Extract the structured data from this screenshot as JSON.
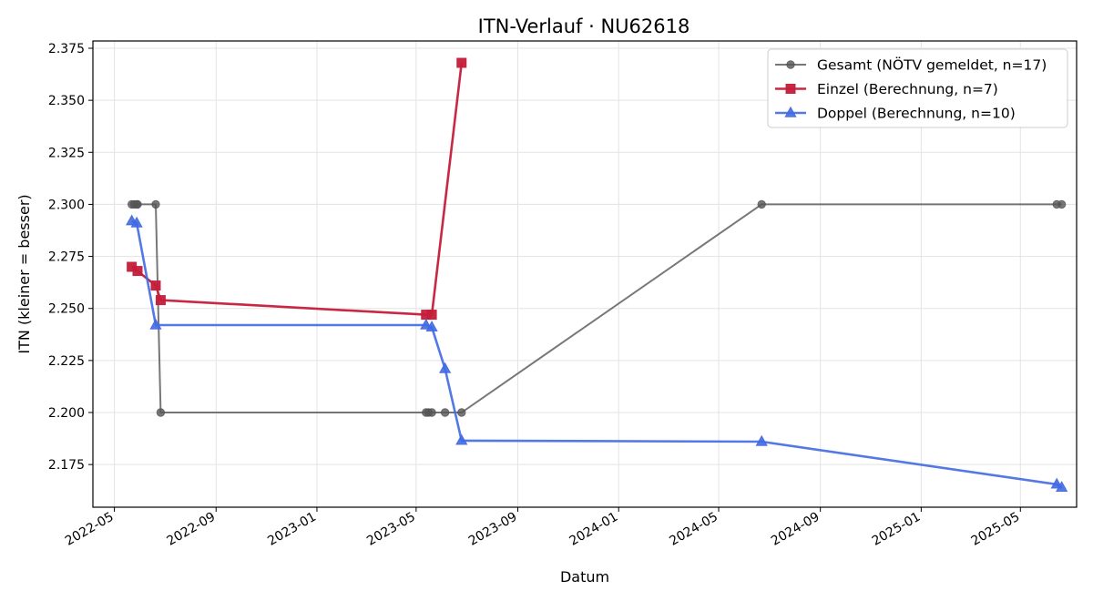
{
  "chart_data": {
    "type": "line",
    "title": "ITN-Verlauf · NU62618",
    "xlabel": "Datum",
    "ylabel": "ITN  (kleiner = besser)",
    "x_type": "date",
    "xlim": [
      "2022-04-05",
      "2025-07-08"
    ],
    "ylim": [
      2.1545,
      2.3785
    ],
    "grid": true,
    "legend_position": "top-right",
    "x_ticks": [
      "2022-05-01",
      "2022-09-01",
      "2023-01-01",
      "2023-05-01",
      "2023-09-01",
      "2024-01-01",
      "2024-05-01",
      "2024-09-01",
      "2025-01-01",
      "2025-05-01"
    ],
    "x_tick_labels": [
      "2022-05",
      "2022-09",
      "2023-01",
      "2023-05",
      "2023-09",
      "2024-01",
      "2024-05",
      "2024-09",
      "2025-01",
      "2025-05"
    ],
    "y_ticks": [
      2.175,
      2.2,
      2.225,
      2.25,
      2.275,
      2.3,
      2.325,
      2.35,
      2.375
    ],
    "y_tick_labels": [
      "2.175",
      "2.200",
      "2.225",
      "2.250",
      "2.275",
      "2.300",
      "2.325",
      "2.350",
      "2.375"
    ],
    "series": [
      {
        "name": "Gesamt (NÖTV gemeldet, n=17)",
        "color": "#555555",
        "marker": "circle",
        "points": [
          {
            "x": "2022-05-22",
            "y": 2.3
          },
          {
            "x": "2022-05-25",
            "y": 2.3
          },
          {
            "x": "2022-05-28",
            "y": 2.3
          },
          {
            "x": "2022-05-29",
            "y": 2.3
          },
          {
            "x": "2022-06-20",
            "y": 2.3
          },
          {
            "x": "2022-06-26",
            "y": 2.2
          },
          {
            "x": "2023-05-13",
            "y": 2.2
          },
          {
            "x": "2023-05-16",
            "y": 2.2
          },
          {
            "x": "2023-05-20",
            "y": 2.2
          },
          {
            "x": "2023-06-05",
            "y": 2.2
          },
          {
            "x": "2023-06-25",
            "y": 2.2
          },
          {
            "x": "2024-06-22",
            "y": 2.3
          },
          {
            "x": "2025-06-14",
            "y": 2.3
          },
          {
            "x": "2025-06-20",
            "y": 2.3
          }
        ]
      },
      {
        "name": "Einzel (Berechnung, n=7)",
        "color": "#c41e3a",
        "marker": "square",
        "points": [
          {
            "x": "2022-05-22",
            "y": 2.27
          },
          {
            "x": "2022-05-29",
            "y": 2.268
          },
          {
            "x": "2022-06-20",
            "y": 2.261
          },
          {
            "x": "2022-06-26",
            "y": 2.254
          },
          {
            "x": "2023-05-13",
            "y": 2.247
          },
          {
            "x": "2023-05-20",
            "y": 2.247
          },
          {
            "x": "2023-06-25",
            "y": 2.368
          }
        ]
      },
      {
        "name": "Doppel (Berechnung, n=10)",
        "color": "#4169e1",
        "marker": "triangle",
        "points": [
          {
            "x": "2022-05-22",
            "y": 2.292
          },
          {
            "x": "2022-05-28",
            "y": 2.291
          },
          {
            "x": "2022-06-20",
            "y": 2.242
          },
          {
            "x": "2023-05-13",
            "y": 2.242
          },
          {
            "x": "2023-05-20",
            "y": 2.241
          },
          {
            "x": "2023-06-05",
            "y": 2.221
          },
          {
            "x": "2023-06-25",
            "y": 2.1865
          },
          {
            "x": "2024-06-22",
            "y": 2.186
          },
          {
            "x": "2025-06-14",
            "y": 2.1655
          },
          {
            "x": "2025-06-20",
            "y": 2.164
          }
        ]
      }
    ]
  }
}
